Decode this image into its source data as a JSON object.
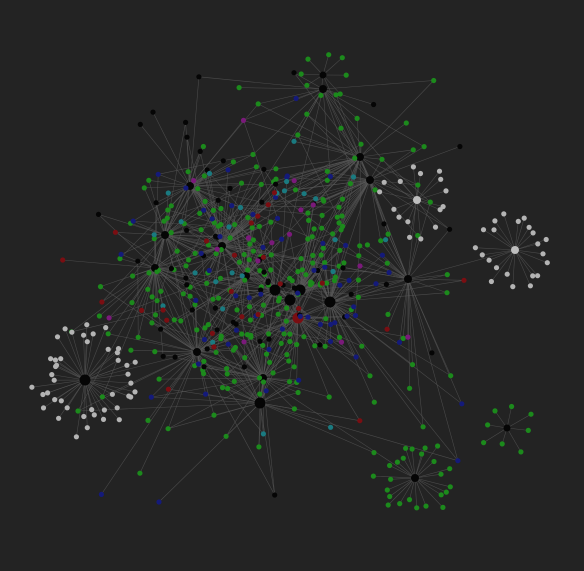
{
  "graph": {
    "background": "#232323",
    "edge_color": "#5a5a5a",
    "node_colors": {
      "black": "#050505",
      "green": "#1c8a1c",
      "navy": "#141a7a",
      "teal": "#1a7a80",
      "maroon": "#7a0e12",
      "purple": "#7a1a7a",
      "gray": "#b4b4b4"
    },
    "groups": [
      {
        "role": "core-green-nodes",
        "color_key": "green",
        "count": 240
      },
      {
        "role": "core-black-nodes",
        "color_key": "black",
        "count": 60
      },
      {
        "role": "core-navy-nodes",
        "color_key": "navy",
        "count": 60
      },
      {
        "role": "core-teal-nodes",
        "color_key": "teal",
        "count": 25
      },
      {
        "role": "core-maroon-nodes",
        "color_key": "maroon",
        "count": 25
      },
      {
        "role": "core-purple-nodes",
        "color_key": "purple",
        "count": 15
      },
      {
        "role": "gray-star-cluster-left",
        "color_key": "gray",
        "count": 44
      },
      {
        "role": "gray-star-cluster-right",
        "color_key": "gray",
        "count": 22
      },
      {
        "role": "gray-star-cluster-upper-right",
        "color_key": "gray",
        "count": 16
      },
      {
        "role": "green-star-cluster-bottom-right",
        "color_key": "green",
        "count": 24
      },
      {
        "role": "green-star-cluster-far-right",
        "color_key": "green",
        "count": 8
      },
      {
        "role": "green-star-cluster-top",
        "color_key": "green",
        "count": 8
      }
    ]
  }
}
